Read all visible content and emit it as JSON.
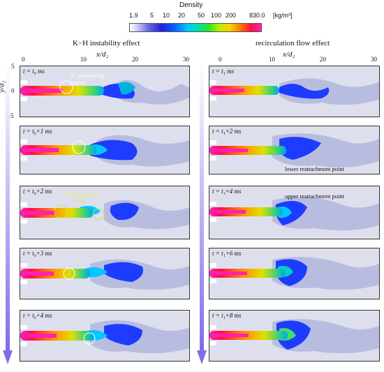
{
  "colorbar": {
    "title": "Density",
    "ticks": [
      "1.9",
      "5",
      "10",
      "20",
      "50",
      "100",
      "200",
      "830.0"
    ],
    "unit": "[kg/m³]"
  },
  "columns": [
    {
      "title": "K−H instability effect"
    },
    {
      "title": "recirculation flow effect"
    }
  ],
  "axes": {
    "xlabel": "x/d₂",
    "ylabel": "y/d₂",
    "x_ticks": [
      "0",
      "10",
      "20",
      "30"
    ],
    "y_ticks": [
      "5",
      "0",
      "-5"
    ]
  },
  "left_panels": [
    {
      "time": "t = t₀ ms"
    },
    {
      "time": "t = t₀+1 ms"
    },
    {
      "time": "t = t₀+2 ms"
    },
    {
      "time": "t = t₀+3 ms"
    },
    {
      "time": "t = t₀+4 ms"
    }
  ],
  "right_panels": [
    {
      "time": "t = t₁ ms"
    },
    {
      "time": "t = t₁+2 ms"
    },
    {
      "time": "t = t₁+4 ms"
    },
    {
      "time": "t = t₁+6 ms"
    },
    {
      "time": "t = t₁+8 ms"
    }
  ],
  "annotations": {
    "vortex1_line1": "1ˢᵗ penetrating",
    "vortex1_line2": "vortex",
    "vortex2_line1": "2ⁿᵈ penetrating",
    "vortex2_line2": "vortex",
    "lower_reattach": "lower reattachment point",
    "upper_reattach": "upper reattachment point"
  }
}
